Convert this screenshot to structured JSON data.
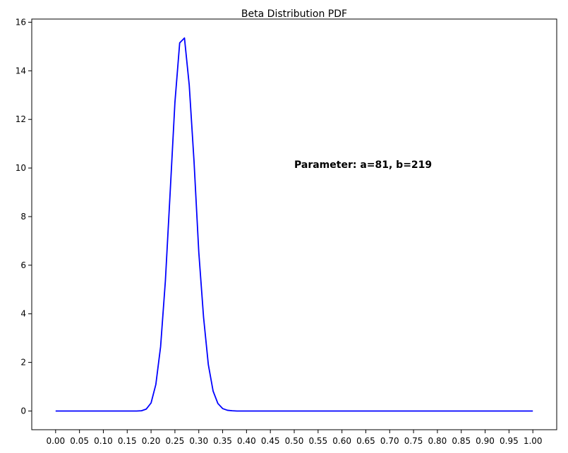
{
  "chart_data": {
    "type": "line",
    "title": "Beta Distribution PDF",
    "xlabel": "",
    "ylabel": "",
    "xlim": [
      -0.05,
      1.05
    ],
    "ylim": [
      -0.77,
      16.13
    ],
    "x_ticks": [
      "0.00",
      "0.05",
      "0.10",
      "0.15",
      "0.20",
      "0.25",
      "0.30",
      "0.35",
      "0.40",
      "0.45",
      "0.50",
      "0.55",
      "0.60",
      "0.65",
      "0.70",
      "0.75",
      "0.80",
      "0.85",
      "0.90",
      "0.95",
      "1.00"
    ],
    "x_tick_values": [
      0,
      0.05,
      0.1,
      0.15,
      0.2,
      0.25,
      0.3,
      0.35,
      0.4,
      0.45,
      0.5,
      0.55,
      0.6,
      0.65,
      0.7,
      0.75,
      0.8,
      0.85,
      0.9,
      0.95,
      1.0
    ],
    "y_ticks": [
      "0",
      "2",
      "4",
      "6",
      "8",
      "10",
      "12",
      "14",
      "16"
    ],
    "y_tick_values": [
      0,
      2,
      4,
      6,
      8,
      10,
      12,
      14,
      16
    ],
    "annotation": {
      "text": "Parameter: a=81, b=219",
      "x": 0.5,
      "y": 10
    },
    "grid": false,
    "series": [
      {
        "color": "#0000ff",
        "x": [
          0,
          0.01,
          0.02,
          0.03,
          0.04,
          0.05,
          0.06,
          0.07,
          0.08,
          0.09,
          0.1,
          0.11,
          0.12,
          0.13,
          0.14,
          0.15,
          0.16,
          0.17,
          0.18,
          0.19,
          0.2,
          0.21,
          0.22,
          0.23,
          0.24,
          0.25,
          0.26,
          0.27,
          0.28,
          0.29,
          0.3,
          0.31,
          0.32,
          0.33,
          0.34,
          0.35,
          0.36,
          0.37,
          0.38,
          0.39,
          0.4,
          0.45,
          0.5,
          0.55,
          0.6,
          0.65,
          0.7,
          0.75,
          0.8,
          0.85,
          0.9,
          0.95,
          1.0
        ],
        "y": [
          0,
          0,
          0,
          0,
          0,
          0,
          0,
          0,
          0,
          0,
          0,
          0,
          0,
          0,
          0,
          0,
          0,
          0,
          0.01,
          0.08,
          0.33,
          1.09,
          2.65,
          5.35,
          8.99,
          12.7,
          15.15,
          15.35,
          13.41,
          10.29,
          6.54,
          3.86,
          1.91,
          0.82,
          0.31,
          0.1,
          0.03,
          0.01,
          0,
          0,
          0,
          0,
          0,
          0,
          0,
          0,
          0,
          0,
          0,
          0,
          0,
          0,
          0
        ]
      }
    ]
  }
}
